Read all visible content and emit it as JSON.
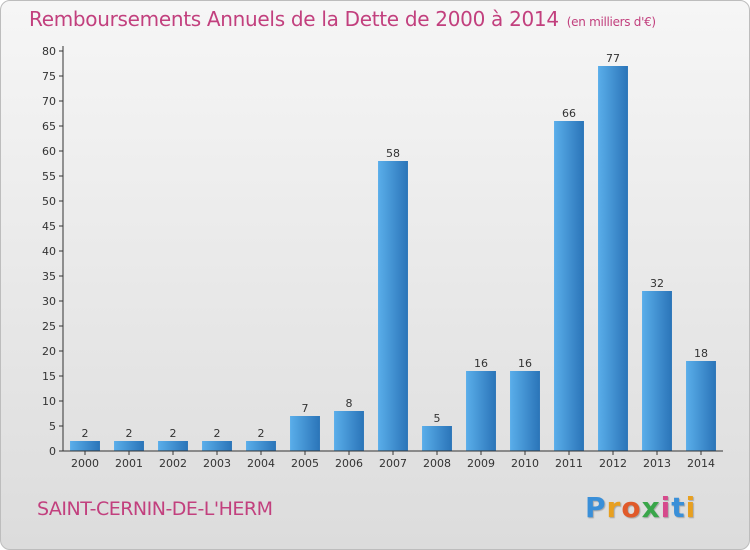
{
  "header": {
    "title": "Remboursements Annuels de la Dette de 2000 à 2014",
    "subtitle": "(en milliers d'€)"
  },
  "footer": {
    "commune": "SAINT-CERNIN-DE-L'HERM",
    "logo_letters": [
      "P",
      "r",
      "o",
      "x",
      "i",
      "t",
      "i"
    ],
    "logo_colors": [
      "#3a8fd8",
      "#e8a020",
      "#e05a2a",
      "#3aa64a",
      "#d64a8c",
      "#3a8fd8",
      "#e8a020"
    ]
  },
  "colors": {
    "title": "#c2407e",
    "bar_light": "#5aaeea",
    "bar_dark": "#2a74b8",
    "axis": "#333333"
  },
  "chart_data": {
    "type": "bar",
    "title": "Remboursements Annuels de la Dette de 2000 à 2014",
    "subtitle": "(en milliers d'€)",
    "categories": [
      "2000",
      "2001",
      "2002",
      "2003",
      "2004",
      "2005",
      "2006",
      "2007",
      "2008",
      "2009",
      "2010",
      "2011",
      "2012",
      "2013",
      "2014"
    ],
    "values": [
      2,
      2,
      2,
      2,
      2,
      7,
      8,
      58,
      5,
      16,
      16,
      66,
      77,
      32,
      18
    ],
    "ylim": [
      0,
      80
    ],
    "yticks": [
      0,
      5,
      10,
      15,
      20,
      25,
      30,
      35,
      40,
      45,
      50,
      55,
      60,
      65,
      70,
      75,
      80
    ],
    "grid": false,
    "data_labels": true
  }
}
